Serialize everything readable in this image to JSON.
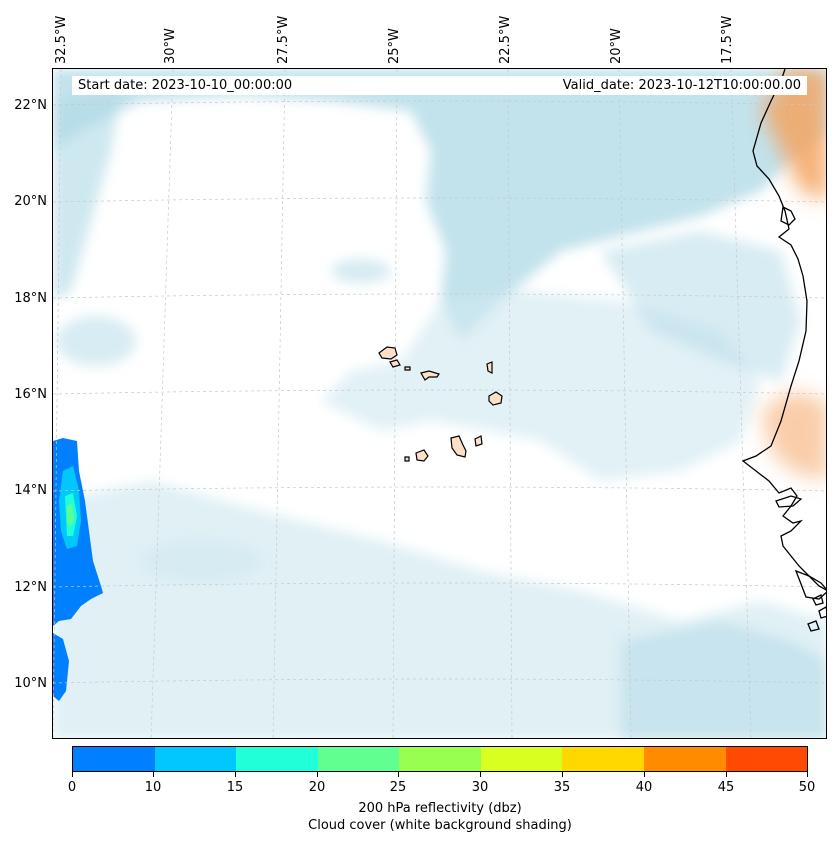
{
  "header": {
    "start_date": "Start date: 2023-10-10_00:00:00",
    "valid_date": "Valid_date: 2023-10-12T10:00:00.00"
  },
  "longitude_labels": [
    "32.5°W",
    "30°W",
    "27.5°W",
    "25°W",
    "22.5°W",
    "20°W",
    "17.5°W"
  ],
  "latitude_labels": [
    "22°N",
    "20°N",
    "18°N",
    "16°N",
    "14°N",
    "12°N",
    "10°N"
  ],
  "colorbar": {
    "ticks": [
      "0",
      "10",
      "15",
      "20",
      "25",
      "30",
      "35",
      "40",
      "45",
      "50"
    ],
    "colors": [
      "#0080ff",
      "#00c8ff",
      "#20ffd8",
      "#60ff90",
      "#98ff50",
      "#d8ff20",
      "#ffd800",
      "#ff8c00",
      "#ff4a00"
    ],
    "title": "200 hPa reflectivity (dbz)",
    "subtitle": "Cloud cover (white background shading)"
  },
  "colors": {
    "cloud": "#add8e6",
    "land": "#f4a460",
    "coast": "#000000",
    "grid": "#c8c8c8"
  }
}
